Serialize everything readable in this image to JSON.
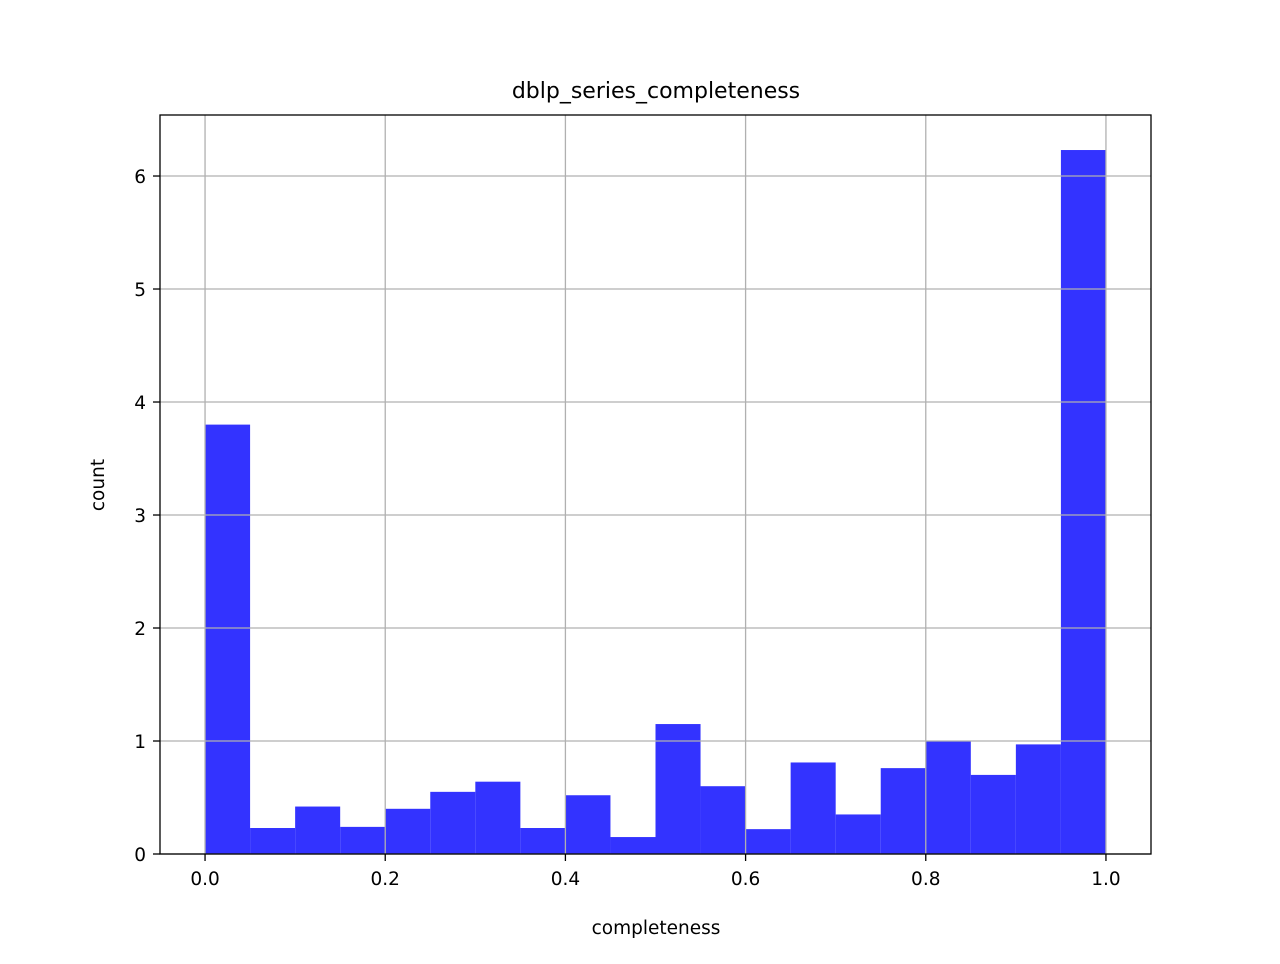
{
  "chart_data": {
    "type": "bar",
    "subtype": "histogram",
    "title": "dblp_series_completeness",
    "xlabel": "completeness",
    "ylabel": "count",
    "bin_edges": [
      0.0,
      0.05,
      0.1,
      0.15,
      0.2,
      0.25,
      0.3,
      0.35,
      0.4,
      0.45,
      0.5,
      0.55,
      0.6,
      0.65,
      0.7,
      0.75,
      0.8,
      0.85,
      0.9,
      0.95,
      1.0
    ],
    "values": [
      3.8,
      0.23,
      0.42,
      0.24,
      0.4,
      0.55,
      0.64,
      0.23,
      0.52,
      0.15,
      1.15,
      0.6,
      0.22,
      0.81,
      0.35,
      0.76,
      1.0,
      0.7,
      0.97,
      6.23
    ],
    "xlim": [
      -0.05,
      1.05
    ],
    "ylim": [
      0,
      6.54
    ],
    "xticks": [
      0.0,
      0.2,
      0.4,
      0.6,
      0.8,
      1.0
    ],
    "xtick_labels": [
      "0.0",
      "0.2",
      "0.4",
      "0.6",
      "0.8",
      "1.0"
    ],
    "yticks": [
      0,
      1,
      2,
      3,
      4,
      5,
      6
    ],
    "ytick_labels": [
      "0",
      "1",
      "2",
      "3",
      "4",
      "5",
      "6"
    ],
    "grid": true,
    "bar_color": "#3333ff",
    "grid_color": "#b0b0b0"
  }
}
